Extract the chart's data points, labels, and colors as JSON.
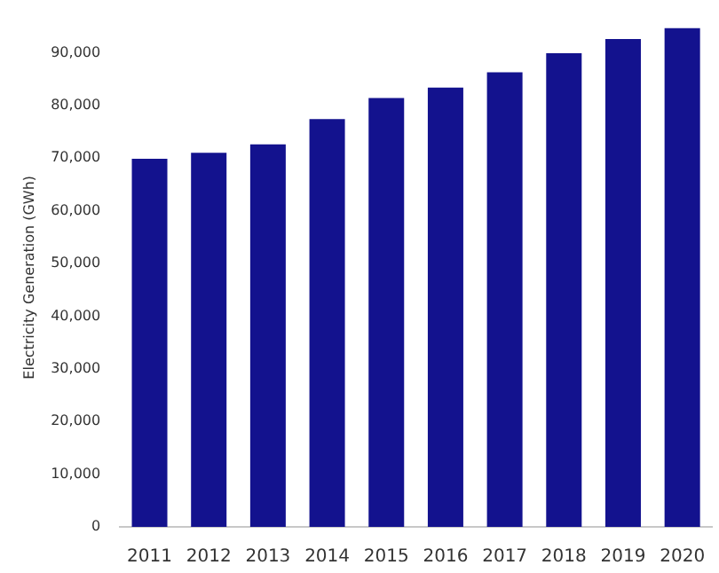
{
  "chart_data": {
    "type": "bar",
    "ylabel": "Electricity Generation (GWh)",
    "categories": [
      "2011",
      "2012",
      "2013",
      "2014",
      "2015",
      "2016",
      "2017",
      "2018",
      "2019",
      "2020"
    ],
    "values": [
      69900,
      71000,
      72600,
      77400,
      81400,
      83400,
      86300,
      89900,
      92600,
      94700
    ],
    "color": "#13128e",
    "ylim": [
      0,
      94700
    ],
    "yticks": [
      0,
      {
        "value": 10000,
        "label": "10,000"
      },
      {
        "value": 20000,
        "label": "20,000"
      },
      {
        "value": 30000,
        "label": "30,000"
      },
      {
        "value": 40000,
        "label": "40,000"
      },
      {
        "value": 50000,
        "label": "50,000"
      },
      {
        "value": 60000,
        "label": "60,000"
      },
      {
        "value": 70000,
        "label": "70,000"
      },
      {
        "value": 80000,
        "label": "80,000"
      },
      {
        "value": 90000,
        "label": "90,000"
      }
    ],
    "grid": false
  }
}
